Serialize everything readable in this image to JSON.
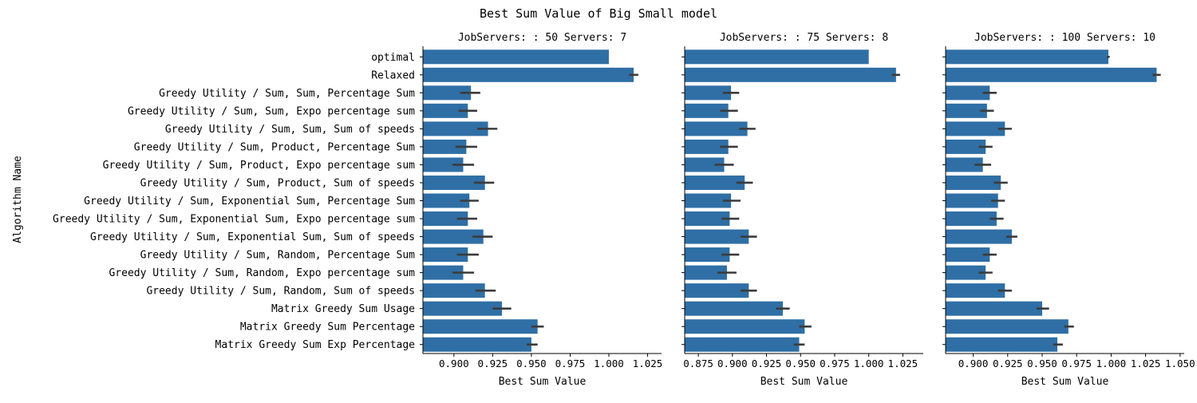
{
  "figure": {
    "suptitle": "Best Sum Value of Big Small model",
    "ylabel": "Algorithm Name",
    "bar_color": "#2f6fa5",
    "error_color": "#3b3b3b"
  },
  "categories": [
    "optimal",
    "Relaxed",
    "Greedy Utility / Sum, Sum, Percentage Sum",
    "Greedy Utility / Sum, Sum, Expo percentage sum",
    "Greedy Utility / Sum, Sum, Sum of speeds",
    "Greedy Utility / Sum, Product, Percentage Sum",
    "Greedy Utility / Sum, Product, Expo percentage sum",
    "Greedy Utility / Sum, Product, Sum of speeds",
    "Greedy Utility / Sum, Exponential Sum, Percentage Sum",
    "Greedy Utility / Sum, Exponential Sum, Expo percentage sum",
    "Greedy Utility / Sum, Exponential Sum, Sum of speeds",
    "Greedy Utility / Sum, Random, Percentage Sum",
    "Greedy Utility / Sum, Random, Expo percentage sum",
    "Greedy Utility / Sum, Random, Sum of speeds",
    "Matrix Greedy Sum Usage",
    "Matrix Greedy Sum Percentage",
    "Matrix Greedy Sum Exp Percentage"
  ],
  "chart_data": [
    {
      "type": "bar",
      "orientation": "horizontal",
      "title": "JobServers: : 50 Servers: 7",
      "xlabel": "Best Sum Value",
      "ylabel": "Algorithm Name",
      "xlim": [
        0.88,
        1.034
      ],
      "xticks": [
        0.9,
        0.925,
        0.95,
        0.975,
        1.0,
        1.025
      ],
      "xtick_labels": [
        "0.900",
        "0.925",
        "0.950",
        "0.975",
        "1.000",
        "1.025"
      ],
      "values": [
        1.0,
        1.016,
        0.911,
        0.909,
        0.922,
        0.908,
        0.906,
        0.92,
        0.91,
        0.909,
        0.919,
        0.909,
        0.906,
        0.92,
        0.931,
        0.954,
        0.95
      ],
      "err_low": [
        1.0,
        1.013,
        0.904,
        0.903,
        0.915,
        0.901,
        0.899,
        0.913,
        0.904,
        0.902,
        0.912,
        0.902,
        0.899,
        0.914,
        0.925,
        0.95,
        0.947
      ],
      "err_high": [
        1.0,
        1.019,
        0.917,
        0.915,
        0.928,
        0.915,
        0.913,
        0.926,
        0.916,
        0.915,
        0.925,
        0.916,
        0.913,
        0.927,
        0.937,
        0.958,
        0.954
      ]
    },
    {
      "type": "bar",
      "orientation": "horizontal",
      "title": "JobServers: : 75 Servers: 8",
      "xlabel": "Best Sum Value",
      "xlim": [
        0.865,
        1.04
      ],
      "xticks": [
        0.875,
        0.9,
        0.925,
        0.95,
        0.975,
        1.0,
        1.025
      ],
      "xtick_labels": [
        "0.875",
        "0.900",
        "0.925",
        "0.950",
        "0.975",
        "1.000",
        "1.025"
      ],
      "values": [
        1.0,
        1.02,
        0.899,
        0.897,
        0.911,
        0.897,
        0.894,
        0.909,
        0.899,
        0.898,
        0.912,
        0.898,
        0.896,
        0.912,
        0.937,
        0.953,
        0.949
      ],
      "err_low": [
        1.0,
        1.017,
        0.893,
        0.891,
        0.905,
        0.891,
        0.887,
        0.903,
        0.893,
        0.892,
        0.906,
        0.892,
        0.889,
        0.906,
        0.932,
        0.949,
        0.945
      ],
      "err_high": [
        1.0,
        1.023,
        0.905,
        0.904,
        0.917,
        0.904,
        0.901,
        0.915,
        0.906,
        0.905,
        0.918,
        0.905,
        0.903,
        0.918,
        0.942,
        0.958,
        0.953
      ]
    },
    {
      "type": "bar",
      "orientation": "horizontal",
      "title": "JobServers: : 100 Servers: 10",
      "xlabel": "Best Sum Value",
      "xlim": [
        0.88,
        1.053
      ],
      "xticks": [
        0.9,
        0.925,
        0.95,
        0.975,
        1.0,
        1.025,
        1.05
      ],
      "xtick_labels": [
        "0.900",
        "0.925",
        "0.950",
        "0.975",
        "1.000",
        "1.025",
        "1.050"
      ],
      "values": [
        0.998,
        1.033,
        0.912,
        0.91,
        0.923,
        0.909,
        0.907,
        0.92,
        0.918,
        0.917,
        0.928,
        0.912,
        0.909,
        0.923,
        0.95,
        0.969,
        0.961
      ],
      "err_low": [
        0.997,
        1.03,
        0.907,
        0.905,
        0.918,
        0.904,
        0.901,
        0.915,
        0.913,
        0.912,
        0.924,
        0.907,
        0.904,
        0.918,
        0.946,
        0.966,
        0.958
      ],
      "err_high": [
        0.999,
        1.036,
        0.917,
        0.915,
        0.928,
        0.914,
        0.913,
        0.925,
        0.923,
        0.922,
        0.932,
        0.917,
        0.914,
        0.928,
        0.955,
        0.973,
        0.965
      ]
    }
  ]
}
